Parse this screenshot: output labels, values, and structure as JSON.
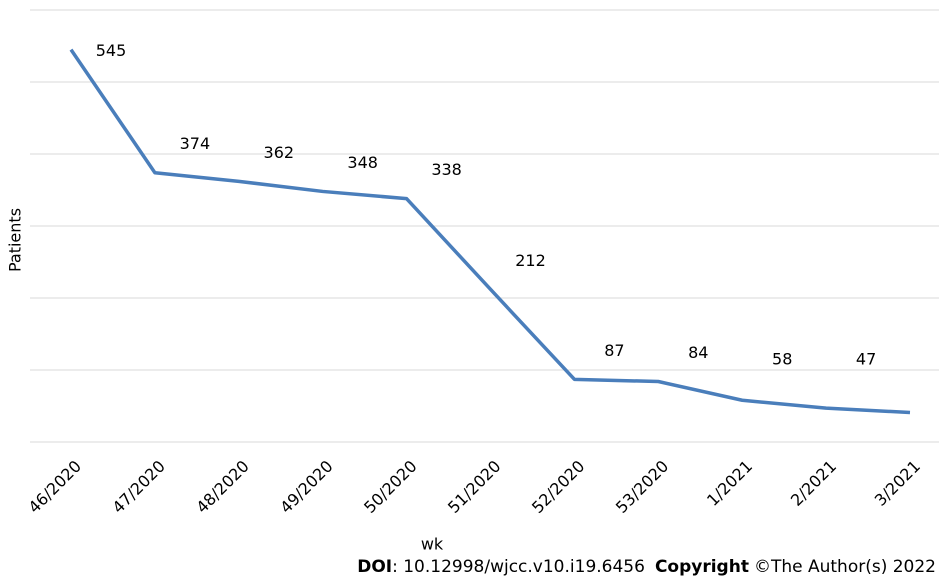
{
  "chart_data": {
    "type": "line",
    "x_label": "wk",
    "y_label": "Patients",
    "categories": [
      "46/2020",
      "47/2020",
      "48/2020",
      "49/2020",
      "50/2020",
      "51/2020",
      "52/2020",
      "53/2020",
      "1/2021",
      "2/2021",
      "3/2021"
    ],
    "series": [
      {
        "name": "Patients",
        "color": "#4a7ebb",
        "values": [
          545,
          374,
          362,
          348,
          338,
          212,
          87,
          84,
          58,
          47,
          41
        ]
      }
    ],
    "ylim": [
      0,
      600
    ],
    "yticks": [
      0,
      100,
      200,
      300,
      400,
      500,
      600
    ],
    "grid": true
  },
  "footer": {
    "doi_label": "DOI",
    "doi": ": 10.12998/wjcc.v10.i19.6456",
    "copyright_label": "Copyright",
    "copyright": "©The Author(s) 2022"
  }
}
